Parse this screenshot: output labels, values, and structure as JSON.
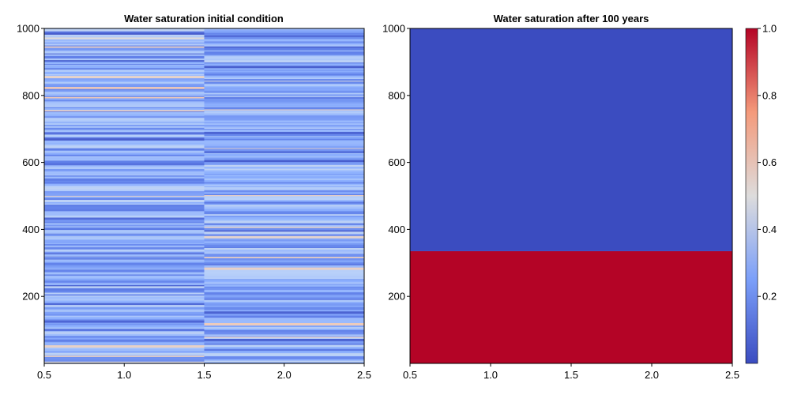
{
  "chart_data": [
    {
      "type": "heatmap",
      "title": "Water saturation initial condition",
      "xlabel": "",
      "ylabel": "",
      "xlim": [
        0.5,
        2.5
      ],
      "ylim": [
        0,
        1000
      ],
      "x_ticks": [
        "0.5",
        "1.0",
        "1.5",
        "2.0",
        "2.5"
      ],
      "y_ticks": [
        "200",
        "400",
        "600",
        "800",
        "1000"
      ],
      "columns": [
        {
          "x_range": [
            0.5,
            1.5
          ],
          "mean_saturation": 0.25,
          "pattern": "random horizontal layers, values mostly 0.1-0.4, occasional 0.5-0.6"
        },
        {
          "x_range": [
            1.5,
            2.5
          ],
          "mean_saturation": 0.25,
          "pattern": "random horizontal layers, values mostly 0.1-0.4, occasional 0.5-0.6"
        }
      ],
      "colormap": "coolwarm",
      "grid": false
    },
    {
      "type": "heatmap",
      "title": "Water saturation after 100 years",
      "xlabel": "",
      "ylabel": "",
      "xlim": [
        0.5,
        2.5
      ],
      "ylim": [
        0,
        1000
      ],
      "x_ticks": [
        "0.5",
        "1.0",
        "1.5",
        "2.0",
        "2.5"
      ],
      "y_ticks": [
        "200",
        "400",
        "600",
        "800",
        "1000"
      ],
      "regions": [
        {
          "y_range": [
            0,
            335
          ],
          "saturation": 1.0
        },
        {
          "y_range": [
            335,
            1000
          ],
          "saturation": 0.0
        }
      ],
      "colormap": "coolwarm",
      "grid": false
    }
  ],
  "colorbar": {
    "range": [
      0.0,
      1.0
    ],
    "ticks": [
      "0.2",
      "0.4",
      "0.6",
      "0.8",
      "1.0"
    ],
    "colors": {
      "low": "#3b4cc0",
      "mid": "#dddcdc",
      "high": "#b40426"
    }
  }
}
